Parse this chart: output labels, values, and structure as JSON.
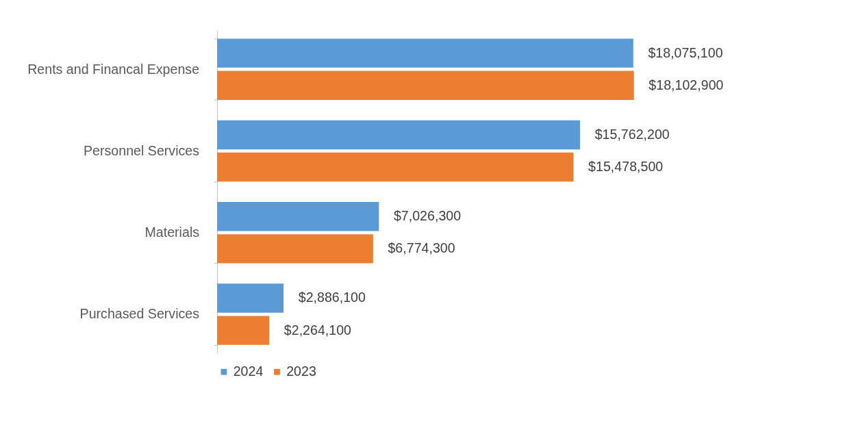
{
  "chart_data": {
    "type": "bar",
    "orientation": "horizontal",
    "categories": [
      "Rents and Financal Expense",
      "Personnel Services",
      "Materials",
      "Purchased Services"
    ],
    "series": [
      {
        "name": "2024",
        "color": "#5b9bd5",
        "values": [
          18075100,
          15762200,
          7026300,
          2886100
        ],
        "value_labels": [
          "$18,075,100",
          "$15,762,200",
          "$7,026,300",
          "$2,886,100"
        ]
      },
      {
        "name": "2023",
        "color": "#ed7d31",
        "values": [
          18102900,
          15478500,
          6774300,
          2264100
        ],
        "value_labels": [
          "$18,102,900",
          "$15,478,500",
          "$6,774,300",
          "$2,264,100"
        ]
      }
    ],
    "legend": "bottom",
    "grid": false,
    "tick_labels": "y"
  }
}
